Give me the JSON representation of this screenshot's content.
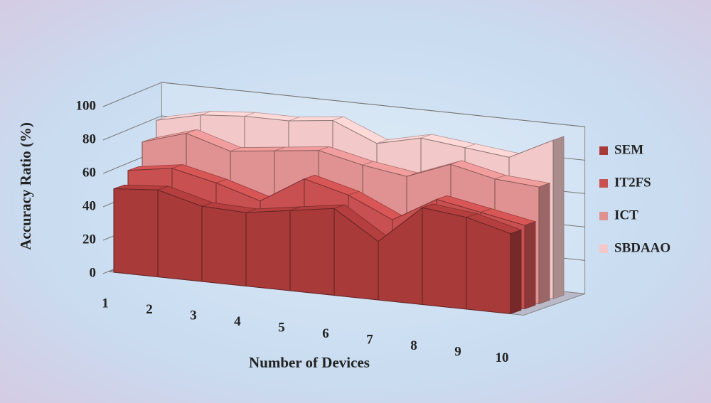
{
  "chart_data": {
    "type": "area3d",
    "x_label": "Number of Devices",
    "y_label": "Accuracy Ratio (%)",
    "categories": [
      "1",
      "2",
      "3",
      "4",
      "5",
      "6",
      "7",
      "8",
      "9",
      "10"
    ],
    "series": [
      {
        "name": "SEM",
        "color": "#a83a3a",
        "values": [
          50,
          52,
          45,
          44,
          48,
          52,
          35,
          58,
          55,
          48
        ]
      },
      {
        "name": "IT2FS",
        "color": "#c85050",
        "values": [
          58,
          62,
          56,
          48,
          64,
          57,
          45,
          60,
          55,
          50
        ]
      },
      {
        "name": "ICT",
        "color": "#e09292",
        "values": [
          72,
          80,
          72,
          75,
          78,
          72,
          68,
          78,
          72,
          70
        ]
      },
      {
        "name": "SBDAAO",
        "color": "#f2c8c8",
        "values": [
          82,
          88,
          90,
          90,
          93,
          82,
          88,
          85,
          82,
          95
        ]
      }
    ],
    "ylim": [
      0,
      100
    ],
    "yticks": [
      0,
      20,
      40,
      60,
      80,
      100
    ],
    "grid": true
  }
}
